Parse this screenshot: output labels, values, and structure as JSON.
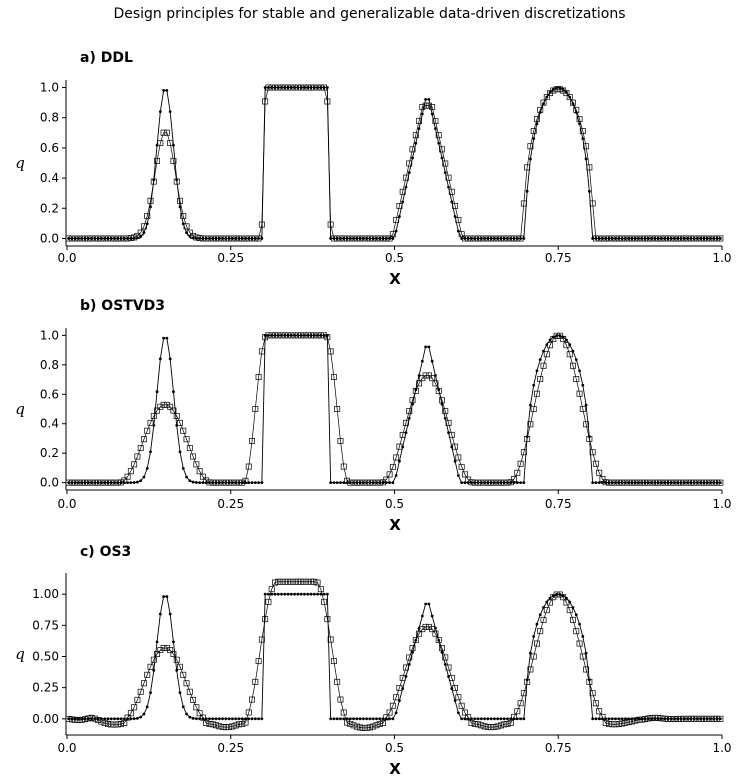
{
  "page": {
    "title": "Design principles for stable and generalizable data-driven discretizations"
  },
  "chart_data": [
    {
      "type": "line",
      "title": "a) DDL",
      "xlabel": "X",
      "ylabel": "q",
      "xlim": [
        0.0,
        1.0
      ],
      "ylim": [
        -0.05,
        1.05
      ],
      "xticks": [
        "0.0",
        "0.25",
        "0.5",
        "0.75",
        "1.0"
      ],
      "yticks": [
        "0.0",
        "0.2",
        "0.4",
        "0.6",
        "0.8",
        "1.0"
      ],
      "ytick_values": [
        0.0,
        0.2,
        0.4,
        0.6,
        0.8,
        1.0
      ],
      "grid": false,
      "legend": "none",
      "series": [
        {
          "marker": "dot",
          "profile": "exact",
          "pulses": [
            {
              "shape": "gaussian",
              "x0": 0.1,
              "x1": 0.2,
              "peak": 1.0
            },
            {
              "shape": "square",
              "x0": 0.3,
              "x1": 0.4,
              "peak": 1.0
            },
            {
              "shape": "triangle",
              "x0": 0.5,
              "x1": 0.6,
              "peak": 0.97
            },
            {
              "shape": "ellipse",
              "x0": 0.7,
              "x1": 0.8,
              "peak": 1.0
            }
          ]
        },
        {
          "marker": "open-square",
          "profile": "numerical",
          "pulses": [
            {
              "shape": "gaussian",
              "x0": 0.1,
              "x1": 0.2,
              "peak": 0.71,
              "widen": 0.004,
              "dip": 0.0
            },
            {
              "shape": "square",
              "x0": 0.3,
              "x1": 0.4,
              "peak": 1.0,
              "widen": 0.004,
              "dip": 0.0
            },
            {
              "shape": "triangle",
              "x0": 0.5,
              "x1": 0.6,
              "peak": 0.88,
              "widen": 0.004,
              "dip": 0.0
            },
            {
              "shape": "ellipse",
              "x0": 0.7,
              "x1": 0.8,
              "peak": 0.99,
              "widen": 0.004,
              "dip": 0.0
            }
          ]
        }
      ]
    },
    {
      "type": "line",
      "title": "b) OSTVD3",
      "xlabel": "X",
      "ylabel": "q",
      "xlim": [
        0.0,
        1.0
      ],
      "ylim": [
        -0.05,
        1.05
      ],
      "xticks": [
        "0.0",
        "0.25",
        "0.5",
        "0.75",
        "1.0"
      ],
      "yticks": [
        "0.0",
        "0.2",
        "0.4",
        "0.6",
        "0.8",
        "1.0"
      ],
      "ytick_values": [
        0.0,
        0.2,
        0.4,
        0.6,
        0.8,
        1.0
      ],
      "grid": false,
      "legend": "none",
      "series": [
        {
          "marker": "dot",
          "profile": "exact",
          "pulses": [
            {
              "shape": "gaussian",
              "x0": 0.1,
              "x1": 0.2,
              "peak": 1.0
            },
            {
              "shape": "square",
              "x0": 0.3,
              "x1": 0.4,
              "peak": 1.0
            },
            {
              "shape": "triangle",
              "x0": 0.5,
              "x1": 0.6,
              "peak": 0.97
            },
            {
              "shape": "ellipse",
              "x0": 0.7,
              "x1": 0.8,
              "peak": 1.0
            }
          ]
        },
        {
          "marker": "open-square",
          "profile": "numerical",
          "pulses": [
            {
              "shape": "smooth",
              "x0": 0.08,
              "x1": 0.22,
              "peak": 0.53,
              "dip": 0.0
            },
            {
              "shape": "smooth",
              "x0": 0.27,
              "x1": 0.43,
              "peak": 1.0,
              "flat": 0.045,
              "dip": 0.0
            },
            {
              "shape": "smooth",
              "x0": 0.48,
              "x1": 0.62,
              "peak": 0.73,
              "dip": 0.0
            },
            {
              "shape": "smooth",
              "x0": 0.675,
              "x1": 0.825,
              "peak": 1.0,
              "dip": 0.0
            }
          ]
        }
      ]
    },
    {
      "type": "line",
      "title": "c) OS3",
      "xlabel": "X",
      "ylabel": "q",
      "xlim": [
        0.0,
        1.0
      ],
      "ylim": [
        -0.13,
        1.17
      ],
      "xticks": [
        "0.0",
        "0.25",
        "0.5",
        "0.75",
        "1.0"
      ],
      "yticks": [
        "0.00",
        "0.25",
        "0.50",
        "0.75",
        "1.00"
      ],
      "ytick_values": [
        0.0,
        0.25,
        0.5,
        0.75,
        1.0
      ],
      "grid": false,
      "legend": "none",
      "series": [
        {
          "marker": "dot",
          "profile": "exact",
          "pulses": [
            {
              "shape": "gaussian",
              "x0": 0.1,
              "x1": 0.2,
              "peak": 1.0
            },
            {
              "shape": "square",
              "x0": 0.3,
              "x1": 0.4,
              "peak": 1.0
            },
            {
              "shape": "triangle",
              "x0": 0.5,
              "x1": 0.6,
              "peak": 0.97
            },
            {
              "shape": "ellipse",
              "x0": 0.7,
              "x1": 0.8,
              "peak": 1.0
            }
          ]
        },
        {
          "marker": "open-square",
          "profile": "numerical",
          "pulses": [
            {
              "shape": "smooth",
              "x0": 0.085,
              "x1": 0.215,
              "peak": 0.57,
              "dip": -0.045
            },
            {
              "shape": "smooth",
              "x0": 0.27,
              "x1": 0.43,
              "peak": 1.1,
              "flat": 0.03,
              "dip": -0.045
            },
            {
              "shape": "smooth",
              "x0": 0.48,
              "x1": 0.62,
              "peak": 0.74,
              "dip": -0.045
            },
            {
              "shape": "smooth",
              "x0": 0.675,
              "x1": 0.825,
              "peak": 1.0,
              "dip": -0.045
            }
          ],
          "ripples": [
            {
              "x": 0.03,
              "y": 0.012,
              "w": 0.03
            },
            {
              "x": 0.885,
              "y": 0.01,
              "w": 0.03
            }
          ]
        }
      ]
    }
  ]
}
